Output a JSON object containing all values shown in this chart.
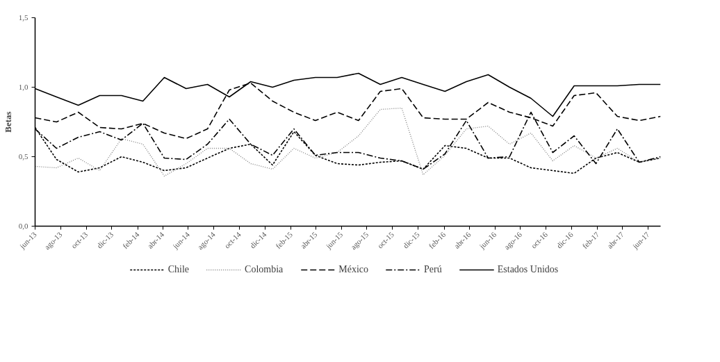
{
  "chart_data": {
    "type": "line",
    "ylabel": "Betas",
    "x": [
      "2013-06-01",
      "2013-07-22",
      "2013-09-12",
      "2013-11-02",
      "2013-12-24",
      "2014-02-13",
      "2014-04-05",
      "2014-05-27",
      "2014-07-17",
      "2014-09-07",
      "2014-10-28",
      "2014-12-19",
      "2015-02-08",
      "2015-03-31",
      "2015-05-22",
      "2015-07-12",
      "2015-09-02",
      "2015-10-23",
      "2015-12-13",
      "2016-02-03",
      "2016-03-25",
      "2016-05-16",
      "2016-07-06",
      "2016-08-26",
      "2016-10-17",
      "2016-12-07",
      "2017-01-28",
      "2017-03-20",
      "2017-05-11",
      "2017-07-01"
    ],
    "xlim": [
      "2013-06",
      "2017-07"
    ],
    "xticks": [
      {
        "value": "2013-06",
        "label": "jun-13"
      },
      {
        "value": "2013-08",
        "label": "ago-13"
      },
      {
        "value": "2013-10",
        "label": "oct-13"
      },
      {
        "value": "2013-12",
        "label": "dic-13"
      },
      {
        "value": "2014-02",
        "label": "feb-14"
      },
      {
        "value": "2014-04",
        "label": "abr-14"
      },
      {
        "value": "2014-06",
        "label": "jun-14"
      },
      {
        "value": "2014-08",
        "label": "ago-14"
      },
      {
        "value": "2014-10",
        "label": "oct-14"
      },
      {
        "value": "2014-12",
        "label": "dic-14"
      },
      {
        "value": "2015-02",
        "label": "feb-15"
      },
      {
        "value": "2015-04",
        "label": "abr-15"
      },
      {
        "value": "2015-06",
        "label": "jun-15"
      },
      {
        "value": "2015-08",
        "label": "ago-15"
      },
      {
        "value": "2015-10",
        "label": "oct-15"
      },
      {
        "value": "2015-12",
        "label": "dic-15"
      },
      {
        "value": "2016-02",
        "label": "feb-16"
      },
      {
        "value": "2016-04",
        "label": "abr-16"
      },
      {
        "value": "2016-06",
        "label": "jun-16"
      },
      {
        "value": "2016-08",
        "label": "ago-16"
      },
      {
        "value": "2016-10",
        "label": "oct-16"
      },
      {
        "value": "2016-12",
        "label": "dic-16"
      },
      {
        "value": "2017-02",
        "label": "feb-17"
      },
      {
        "value": "2017-04",
        "label": "abr-17"
      },
      {
        "value": "2017-06",
        "label": "jun-17"
      }
    ],
    "ylim": [
      0,
      1.5
    ],
    "yticks": [
      {
        "value": 0,
        "label": "0,0"
      },
      {
        "value": 0.5,
        "label": "0,5"
      },
      {
        "value": 1,
        "label": "1,0"
      },
      {
        "value": 1.5,
        "label": "1,5"
      }
    ],
    "legend": "bottom",
    "series": [
      {
        "name": "Chile",
        "color": "#000000",
        "line_style": "dashed",
        "values": [
          0.71,
          0.48,
          0.39,
          0.42,
          0.5,
          0.46,
          0.4,
          0.42,
          0.49,
          0.56,
          0.59,
          0.44,
          0.68,
          0.51,
          0.45,
          0.44,
          0.46,
          0.47,
          0.41,
          0.58,
          0.56,
          0.49,
          0.49,
          0.42,
          0.4,
          0.38,
          0.49,
          0.53,
          0.46,
          0.49
        ]
      },
      {
        "name": "Colombia",
        "color": "#7f7f7f",
        "line_style": "dotted",
        "values": [
          0.43,
          0.42,
          0.49,
          0.4,
          0.63,
          0.59,
          0.36,
          0.45,
          0.56,
          0.56,
          0.45,
          0.41,
          0.56,
          0.49,
          0.53,
          0.65,
          0.84,
          0.85,
          0.37,
          0.51,
          0.7,
          0.72,
          0.59,
          0.67,
          0.47,
          0.58,
          0.49,
          0.56,
          0.46,
          0.49
        ]
      },
      {
        "name": "México",
        "color": "#000000",
        "line_style": "longdash",
        "values": [
          0.78,
          0.75,
          0.82,
          0.71,
          0.7,
          0.74,
          0.67,
          0.63,
          0.7,
          0.98,
          1.03,
          0.9,
          0.82,
          0.76,
          0.82,
          0.76,
          0.97,
          0.99,
          0.78,
          0.77,
          0.77,
          0.89,
          0.82,
          0.78,
          0.72,
          0.94,
          0.96,
          0.79,
          0.76,
          0.79
        ]
      },
      {
        "name": "Perú",
        "color": "#000000",
        "line_style": "dashdot",
        "values": [
          0.7,
          0.56,
          0.64,
          0.68,
          0.62,
          0.74,
          0.49,
          0.48,
          0.59,
          0.77,
          0.59,
          0.51,
          0.7,
          0.51,
          0.53,
          0.53,
          0.49,
          0.47,
          0.41,
          0.52,
          0.76,
          0.49,
          0.5,
          0.82,
          0.53,
          0.65,
          0.45,
          0.7,
          0.46,
          0.5
        ]
      },
      {
        "name": "Estados Unidos",
        "color": "#000000",
        "line_style": "solid",
        "values": [
          0.99,
          0.93,
          0.87,
          0.94,
          0.94,
          0.9,
          1.07,
          0.99,
          1.02,
          0.93,
          1.04,
          1.0,
          1.05,
          1.07,
          1.07,
          1.1,
          1.02,
          1.07,
          1.02,
          0.97,
          1.04,
          1.09,
          1.0,
          0.92,
          0.79,
          1.01,
          1.01,
          1.01,
          1.02,
          1.02
        ]
      }
    ]
  }
}
